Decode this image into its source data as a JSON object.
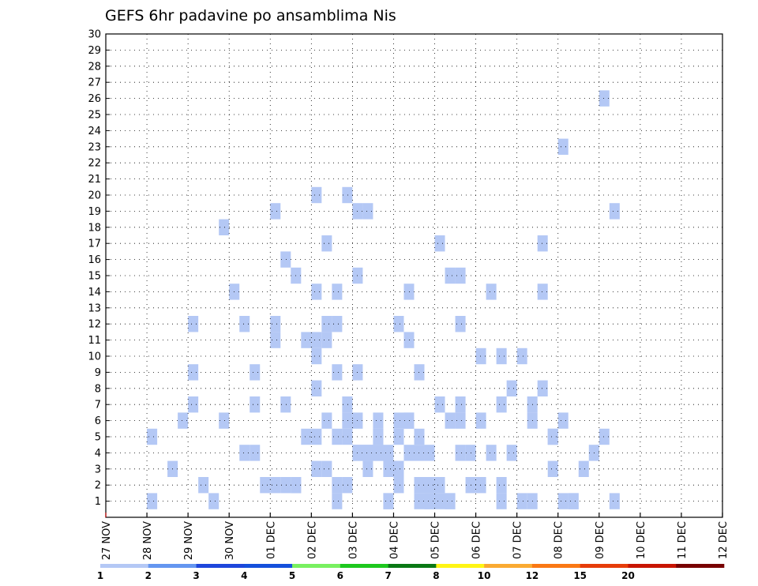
{
  "chart_data": {
    "type": "heatmap",
    "title": "GEFS 6hr padavine po ansamblima Nis",
    "x_tick_labels": [
      "27 NOV",
      "28 NOV",
      "29 NOV",
      "30 NOV",
      "01 DEC",
      "02 DEC",
      "03 DEC",
      "04 DEC",
      "05 DEC",
      "06 DEC",
      "07 DEC",
      "08 DEC",
      "09 DEC",
      "10 DEC",
      "11 DEC",
      "12 DEC"
    ],
    "y_tick_labels": [
      "1",
      "2",
      "3",
      "4",
      "5",
      "6",
      "7",
      "8",
      "9",
      "10",
      "11",
      "12",
      "13",
      "14",
      "15",
      "16",
      "17",
      "18",
      "19",
      "20",
      "21",
      "22",
      "23",
      "24",
      "25",
      "26",
      "27",
      "28",
      "29",
      "30"
    ],
    "ylim": [
      0,
      30
    ],
    "step_hours": 6,
    "grid": true,
    "colorbar": {
      "levels": [
        "1",
        "2",
        "3",
        "4",
        "5",
        "6",
        "7",
        "8",
        "10",
        "12",
        "15",
        "20"
      ],
      "colors": [
        "#b4c8f5",
        "#6496f0",
        "#1e46dc",
        "#1450dc",
        "#78f060",
        "#1ec81e",
        "#0a7814",
        "#fff514",
        "#faaa32",
        "#fa7814",
        "#e63c0a",
        "#c81400",
        "#780000"
      ]
    },
    "cells": [
      [
        0,
        4,
        1
      ],
      [
        0,
        4,
        5
      ],
      [
        0,
        6,
        3
      ],
      [
        0,
        7,
        6
      ],
      [
        0,
        10,
        1
      ],
      [
        0,
        11,
        6
      ],
      [
        0,
        11,
        18
      ],
      [
        0,
        18,
        2
      ],
      [
        0,
        19,
        5
      ],
      [
        0,
        20,
        8
      ],
      [
        0,
        22,
        1
      ],
      [
        0,
        27,
        3
      ],
      [
        0,
        28,
        3
      ],
      [
        1,
        4,
        7
      ],
      [
        1,
        4,
        9
      ],
      [
        1,
        4,
        12
      ],
      [
        1,
        5,
        2
      ],
      [
        1,
        10,
        7
      ],
      [
        1,
        17,
        12
      ],
      [
        1,
        18,
        5
      ],
      [
        1,
        19,
        5
      ],
      [
        1,
        20,
        4
      ],
      [
        1,
        21,
        4
      ],
      [
        1,
        22,
        5
      ],
      [
        1,
        24,
        6
      ],
      [
        1,
        25,
        6
      ],
      [
        1,
        26,
        1
      ],
      [
        1,
        27,
        2
      ],
      [
        1,
        28,
        1
      ],
      [
        1,
        29,
        1
      ],
      [
        2,
        4,
        14
      ],
      [
        2,
        5,
        4
      ],
      [
        2,
        5,
        12
      ],
      [
        2,
        6,
        4
      ],
      [
        2,
        6,
        9
      ],
      [
        2,
        7,
        2
      ],
      [
        2,
        8,
        2
      ],
      [
        2,
        8,
        11
      ],
      [
        2,
        9,
        2
      ],
      [
        2,
        16,
        15
      ],
      [
        2,
        18,
        4
      ],
      [
        2,
        19,
        3
      ],
      [
        2,
        20,
        3
      ],
      [
        2,
        21,
        4
      ],
      [
        2,
        22,
        4
      ],
      [
        2,
        24,
        7
      ],
      [
        2,
        25,
        1
      ],
      [
        2,
        26,
        6
      ],
      [
        3,
        4,
        12
      ],
      [
        3,
        4,
        19
      ],
      [
        3,
        5,
        7
      ],
      [
        3,
        5,
        16
      ],
      [
        3,
        6,
        2
      ],
      [
        3,
        6,
        15
      ],
      [
        3,
        7,
        11
      ],
      [
        3,
        8,
        5
      ],
      [
        3,
        8,
        10
      ],
      [
        3,
        9,
        6
      ],
      [
        3,
        10,
        12
      ],
      [
        3,
        11,
        7
      ],
      [
        3,
        12,
        6
      ],
      [
        3,
        15,
        1
      ],
      [
        3,
        16,
        5
      ],
      [
        3,
        17,
        6
      ],
      [
        3,
        18,
        5
      ],
      [
        3,
        19,
        1
      ],
      [
        3,
        20,
        2
      ],
      [
        3,
        22,
        4
      ],
      [
        3,
        22,
        7
      ],
      [
        3,
        24,
        6
      ],
      [
        3,
        26,
        1
      ],
      [
        3,
        27,
        4
      ],
      [
        3,
        28,
        1
      ],
      [
        3,
        29,
        1
      ],
      [
        4,
        4,
        11
      ],
      [
        4,
        4,
        14
      ],
      [
        4,
        5,
        11
      ],
      [
        4,
        6,
        14
      ],
      [
        4,
        7,
        6
      ],
      [
        4,
        8,
        4
      ],
      [
        4,
        9,
        4
      ],
      [
        4,
        10,
        4
      ],
      [
        4,
        10,
        5
      ],
      [
        4,
        11,
        1
      ],
      [
        4,
        12,
        12
      ],
      [
        4,
        13,
        14
      ],
      [
        4,
        15,
        4
      ],
      [
        4,
        17,
        15
      ],
      [
        4,
        18,
        15
      ],
      [
        4,
        19,
        2
      ],
      [
        4,
        20,
        2
      ],
      [
        4,
        21,
        14
      ],
      [
        4,
        22,
        10
      ],
      [
        4,
        24,
        10
      ],
      [
        4,
        25,
        6
      ],
      [
        4,
        26,
        14
      ],
      [
        4,
        27,
        5
      ],
      [
        4,
        28,
        1
      ],
      [
        4,
        29,
        1
      ],
      [
        5,
        0,
        3
      ],
      [
        5,
        0,
        20
      ],
      [
        5,
        1,
        3
      ],
      [
        5,
        1,
        17
      ],
      [
        5,
        2,
        2
      ],
      [
        5,
        2,
        9
      ],
      [
        5,
        3,
        2
      ],
      [
        5,
        3,
        20
      ],
      [
        5,
        4,
        9
      ],
      [
        5,
        4,
        19
      ],
      [
        5,
        5,
        3
      ],
      [
        5,
        5,
        19
      ],
      [
        5,
        6,
        6
      ],
      [
        5,
        7,
        4
      ],
      [
        5,
        8,
        2
      ],
      [
        5,
        9,
        11
      ],
      [
        5,
        10,
        2
      ],
      [
        5,
        10,
        9
      ],
      [
        5,
        11,
        1
      ],
      [
        5,
        12,
        17
      ],
      [
        5,
        13,
        6
      ],
      [
        5,
        14,
        12
      ],
      [
        5,
        15,
        4
      ],
      [
        5,
        16,
        10
      ],
      [
        5,
        17,
        4
      ],
      [
        5,
        18,
        2
      ],
      [
        5,
        18,
        7
      ],
      [
        5,
        19,
        8
      ],
      [
        5,
        21,
        7
      ],
      [
        5,
        22,
        8
      ],
      [
        5,
        22,
        17
      ],
      [
        5,
        23,
        3
      ],
      [
        5,
        23,
        5
      ],
      [
        5,
        24,
        6
      ],
      [
        5,
        24,
        23
      ],
      [
        5,
        25,
        1
      ],
      [
        5,
        26,
        3
      ],
      [
        5,
        27,
        4
      ],
      [
        5,
        28,
        5
      ],
      [
        5,
        28,
        26
      ],
      [
        5,
        29,
        1
      ],
      [
        5,
        29,
        19
      ]
    ]
  }
}
